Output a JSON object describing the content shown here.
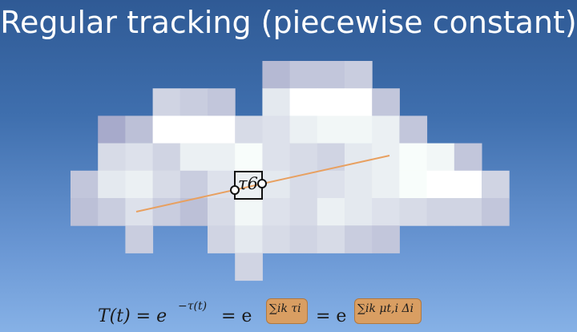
{
  "title": "Regular tracking (piecewise constant)",
  "segment_label": "τ6",
  "formula": {
    "lhs": "T(t) = e",
    "lhs_exp": "−τ(t)",
    "eq1": "= e",
    "sum1": "∑ik τi",
    "eq2": "= e",
    "sum2": "∑ik μt,i Δi"
  },
  "colors": {
    "ray": "#e8a060",
    "highlight_box": "#d99e62",
    "background_top": "#2f5a95",
    "background_bottom": "#86b1e6"
  }
}
